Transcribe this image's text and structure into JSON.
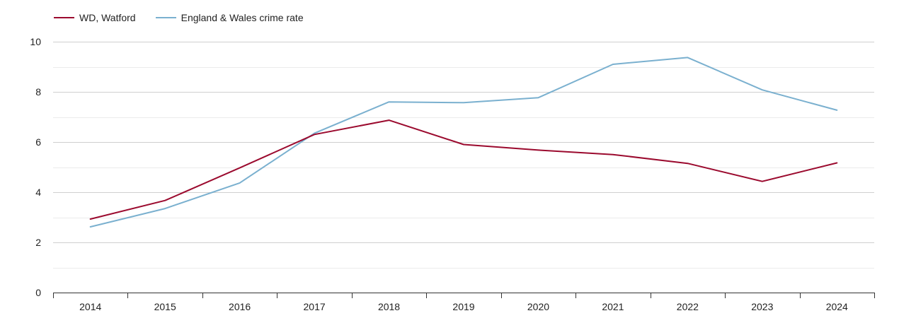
{
  "chart_data": {
    "type": "line",
    "title": "",
    "xlabel": "",
    "ylabel": "",
    "x": [
      "2014",
      "2015",
      "2016",
      "2017",
      "2018",
      "2019",
      "2020",
      "2021",
      "2022",
      "2023",
      "2024"
    ],
    "ylim": [
      0,
      10
    ],
    "yticks": [
      "0",
      "2",
      "4",
      "6",
      "8",
      "10"
    ],
    "grid": true,
    "legend_position": "top-left",
    "series": [
      {
        "name": "WD, Watford",
        "color": "#9b0a2e",
        "values": [
          2.93,
          3.67,
          4.97,
          6.3,
          6.87,
          5.9,
          5.68,
          5.5,
          5.15,
          4.43,
          5.17
        ]
      },
      {
        "name": "England & Wales crime rate",
        "color": "#7ab0cf",
        "values": [
          2.62,
          3.35,
          4.37,
          6.35,
          7.6,
          7.57,
          7.77,
          9.1,
          9.37,
          8.08,
          7.27
        ]
      }
    ]
  }
}
